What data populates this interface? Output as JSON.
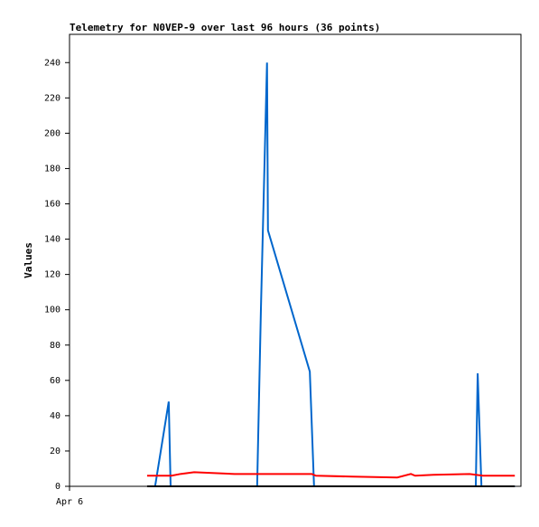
{
  "chart_data": {
    "type": "line",
    "title": "Telemetry for N0VEP-9 over last 96 hours (36 points)",
    "y_label": "Values",
    "xlim": [
      0,
      96
    ],
    "xticks": [
      {
        "value": 0,
        "label": "Apr 6"
      }
    ],
    "ylim": [
      0,
      256
    ],
    "yticks": [
      0,
      20,
      40,
      60,
      80,
      100,
      120,
      140,
      160,
      180,
      200,
      220,
      240
    ],
    "grid": false,
    "series": [
      {
        "color": "#0066cc",
        "x": [
          18.2,
          21.1,
          21.5,
          39.9,
          40.7,
          42.0,
          42.2,
          51.1,
          52.0,
          86.4,
          86.8,
          87.6,
          94.7
        ],
        "values": [
          0,
          48,
          0,
          0,
          100,
          240,
          145,
          65,
          0,
          0,
          64,
          0,
          0
        ]
      },
      {
        "color": "#ff0000",
        "x": [
          16.5,
          21.7,
          23.6,
          26.5,
          35.1,
          51.5,
          52.4,
          60.1,
          69.7,
          72.6,
          73.5,
          77.4,
          85.1,
          87.9,
          94.7
        ],
        "values": [
          6,
          6,
          7,
          8,
          7,
          7,
          6,
          5.5,
          5,
          7,
          6,
          6.5,
          7,
          6,
          6
        ]
      },
      {
        "color": "#000000",
        "x": [
          16.5,
          94.7
        ],
        "values": [
          0,
          0
        ]
      }
    ]
  }
}
